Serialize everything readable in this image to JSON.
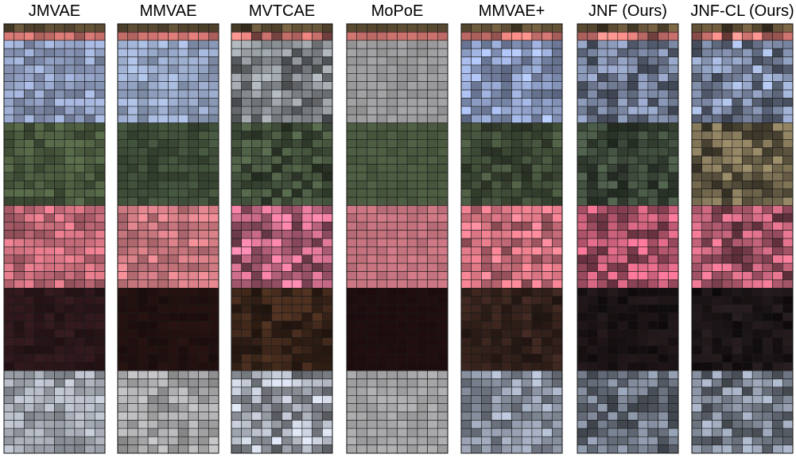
{
  "figure": {
    "columns": [
      {
        "title": "JMVAE"
      },
      {
        "title": "MMVAE"
      },
      {
        "title": "MVTCAE"
      },
      {
        "title": "MoPoE"
      },
      {
        "title": "MMVAE+"
      },
      {
        "title": "JNF (Ours)"
      },
      {
        "title": "JNF-CL (Ours)"
      }
    ]
  }
}
